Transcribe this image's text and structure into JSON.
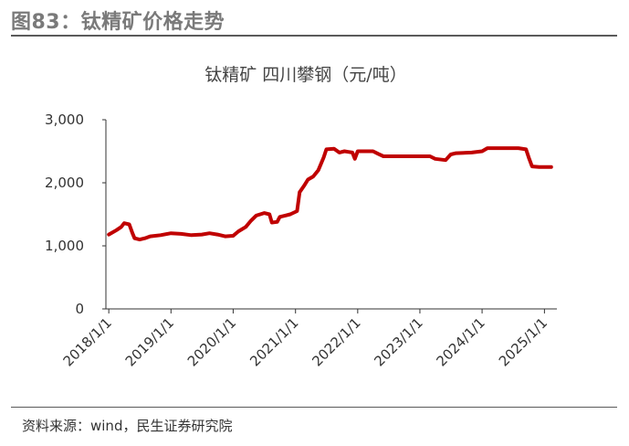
{
  "figure_title": "图83：钛精矿价格走势",
  "source": "资料来源：wind，民生证券研究院",
  "chart_data": {
    "type": "line",
    "title": "钛精矿 四川攀钢（元/吨）",
    "xlabel": "",
    "ylabel": "",
    "ylim": [
      0,
      3000
    ],
    "yticks": [
      0,
      1000,
      2000,
      3000
    ],
    "ytick_labels": [
      "0",
      "1,000",
      "2,000",
      "3,000"
    ],
    "xlim": [
      "2017-12-15",
      "2025-03-15"
    ],
    "xticks": [
      "2018-01-01",
      "2019-01-01",
      "2020-01-01",
      "2021-01-01",
      "2022-01-01",
      "2023-01-01",
      "2024-01-01",
      "2025-01-01"
    ],
    "xtick_labels": [
      "2018/1/1",
      "2019/1/1",
      "2020/1/1",
      "2021/1/1",
      "2022/1/1",
      "2023/1/1",
      "2024/1/1",
      "2025/1/1"
    ],
    "grid": false,
    "series_color": "#c00000",
    "series": [
      {
        "values": [
          [
            "2018-01-01",
            1180
          ],
          [
            "2018-02-15",
            1250
          ],
          [
            "2018-03-15",
            1300
          ],
          [
            "2018-04-01",
            1360
          ],
          [
            "2018-05-01",
            1340
          ],
          [
            "2018-05-20",
            1200
          ],
          [
            "2018-06-01",
            1120
          ],
          [
            "2018-07-01",
            1100
          ],
          [
            "2018-08-01",
            1120
          ],
          [
            "2018-09-01",
            1150
          ],
          [
            "2018-11-01",
            1170
          ],
          [
            "2019-01-01",
            1200
          ],
          [
            "2019-03-01",
            1190
          ],
          [
            "2019-05-01",
            1170
          ],
          [
            "2019-07-01",
            1180
          ],
          [
            "2019-08-15",
            1200
          ],
          [
            "2019-10-01",
            1180
          ],
          [
            "2019-11-15",
            1150
          ],
          [
            "2020-01-01",
            1160
          ],
          [
            "2020-02-01",
            1230
          ],
          [
            "2020-03-15",
            1300
          ],
          [
            "2020-04-15",
            1400
          ],
          [
            "2020-05-15",
            1480
          ],
          [
            "2020-07-01",
            1520
          ],
          [
            "2020-08-01",
            1500
          ],
          [
            "2020-08-15",
            1370
          ],
          [
            "2020-09-15",
            1380
          ],
          [
            "2020-10-01",
            1460
          ],
          [
            "2020-11-01",
            1480
          ],
          [
            "2020-12-01",
            1500
          ],
          [
            "2021-01-10",
            1550
          ],
          [
            "2021-01-25",
            1850
          ],
          [
            "2021-02-20",
            1950
          ],
          [
            "2021-03-15",
            2050
          ],
          [
            "2021-04-15",
            2100
          ],
          [
            "2021-05-15",
            2200
          ],
          [
            "2021-06-15",
            2400
          ],
          [
            "2021-07-01",
            2530
          ],
          [
            "2021-08-15",
            2540
          ],
          [
            "2021-09-15",
            2480
          ],
          [
            "2021-10-15",
            2500
          ],
          [
            "2021-12-01",
            2480
          ],
          [
            "2021-12-15",
            2380
          ],
          [
            "2022-01-01",
            2500
          ],
          [
            "2022-04-01",
            2500
          ],
          [
            "2022-05-01",
            2460
          ],
          [
            "2022-06-01",
            2420
          ],
          [
            "2022-09-01",
            2420
          ],
          [
            "2022-12-01",
            2420
          ],
          [
            "2023-01-01",
            2420
          ],
          [
            "2023-03-01",
            2420
          ],
          [
            "2023-04-01",
            2380
          ],
          [
            "2023-06-01",
            2360
          ],
          [
            "2023-07-01",
            2450
          ],
          [
            "2023-08-01",
            2470
          ],
          [
            "2023-11-01",
            2480
          ],
          [
            "2024-01-01",
            2500
          ],
          [
            "2024-02-01",
            2550
          ],
          [
            "2024-05-01",
            2550
          ],
          [
            "2024-08-01",
            2550
          ],
          [
            "2024-09-15",
            2530
          ],
          [
            "2024-10-01",
            2400
          ],
          [
            "2024-10-20",
            2260
          ],
          [
            "2024-12-01",
            2250
          ],
          [
            "2025-01-01",
            2250
          ],
          [
            "2025-02-10",
            2250
          ]
        ]
      }
    ]
  }
}
